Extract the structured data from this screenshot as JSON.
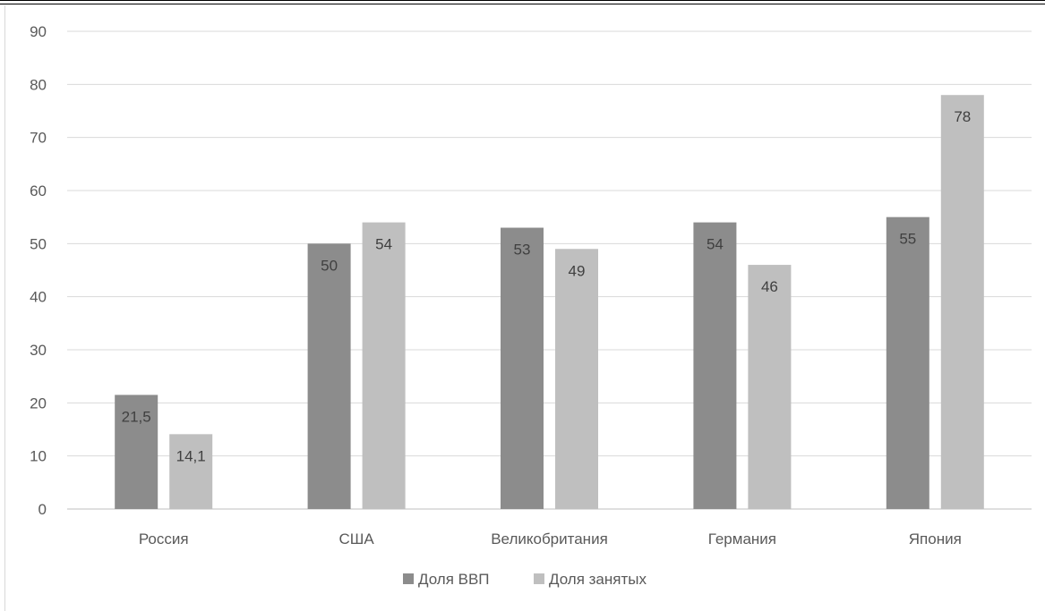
{
  "chart_data": {
    "type": "bar",
    "categories": [
      "Россия",
      "США",
      "Великобритания",
      "Германия",
      "Япония"
    ],
    "series": [
      {
        "name": "Доля ВВП",
        "values": [
          21.5,
          50,
          53,
          54,
          55
        ],
        "labels": [
          "21,5",
          "50",
          "53",
          "54",
          "55"
        ],
        "color": "#8c8c8c"
      },
      {
        "name": "Доля занятых",
        "values": [
          14.1,
          54,
          49,
          46,
          78
        ],
        "labels": [
          "14,1",
          "54",
          "49",
          "46",
          "78"
        ],
        "color": "#bfbfbf"
      }
    ],
    "ylim": [
      0,
      90
    ],
    "yticks": [
      0,
      10,
      20,
      30,
      40,
      50,
      60,
      70,
      80,
      90
    ],
    "grid": true,
    "legend_position": "bottom"
  }
}
